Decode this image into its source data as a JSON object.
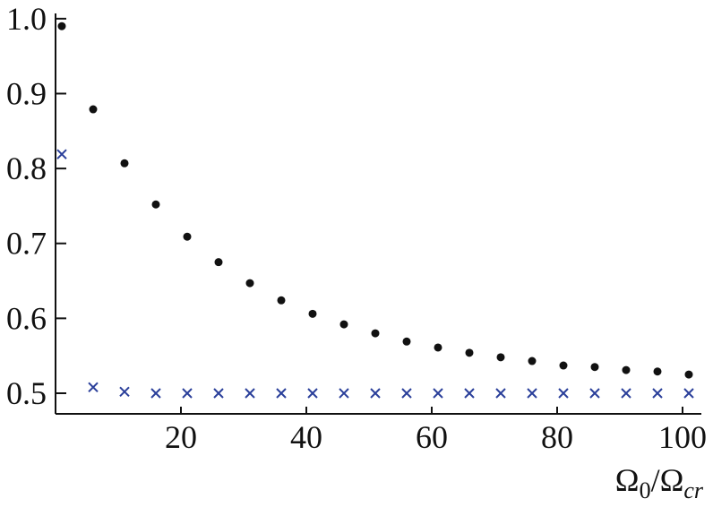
{
  "chart_data": {
    "type": "scatter",
    "x": [
      1,
      6,
      11,
      16,
      21,
      26,
      31,
      36,
      41,
      46,
      51,
      56,
      61,
      66,
      71,
      76,
      81,
      86,
      91,
      96,
      101
    ],
    "series": [
      {
        "marker": "dot",
        "color": "#111111",
        "values": [
          0.99,
          0.879,
          0.807,
          0.752,
          0.709,
          0.675,
          0.647,
          0.624,
          0.606,
          0.592,
          0.58,
          0.569,
          0.561,
          0.554,
          0.548,
          0.543,
          0.537,
          0.535,
          0.531,
          0.529,
          0.525
        ]
      },
      {
        "marker": "cross",
        "color": "#2a3f9a",
        "values": [
          0.819,
          0.508,
          0.502,
          0.5,
          0.5,
          0.5,
          0.5,
          0.5,
          0.5,
          0.5,
          0.5,
          0.5,
          0.5,
          0.5,
          0.5,
          0.5,
          0.5,
          0.5,
          0.5,
          0.5,
          0.5
        ]
      }
    ],
    "xlim": [
      0,
      103
    ],
    "xticks": [
      20,
      40,
      60,
      80,
      100
    ],
    "ylim": [
      0.4725,
      1.007
    ],
    "yticks": [
      0.5,
      0.6,
      0.7,
      0.8,
      0.9,
      {
        "value": 1,
        "label": "1.0"
      }
    ],
    "xlabel": [
      "Ω",
      "0",
      "/Ω",
      "cr"
    ]
  }
}
